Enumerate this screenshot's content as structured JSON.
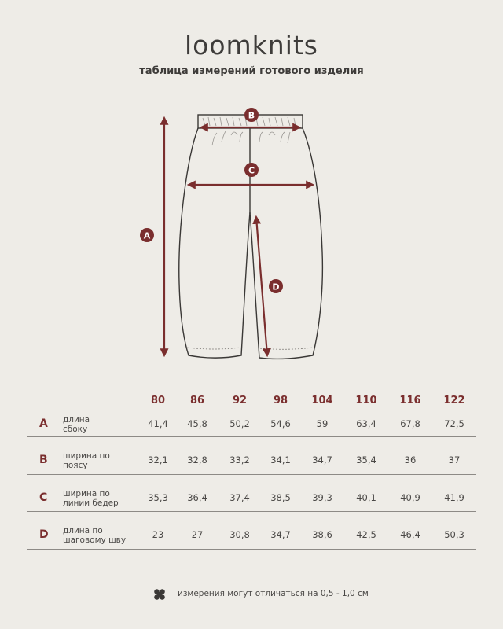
{
  "brand": "loomknits",
  "subtitle": "таблица измерений готового изделия",
  "colors": {
    "accent": "#7a2e2e",
    "background": "#eeece7",
    "line": "#3a3836"
  },
  "diagram": {
    "markers": [
      "A",
      "B",
      "C",
      "D"
    ]
  },
  "table": {
    "sizes": [
      "80",
      "86",
      "92",
      "98",
      "104",
      "110",
      "116",
      "122"
    ],
    "rows": [
      {
        "letter": "A",
        "label1": "длина",
        "label2": "сбоку",
        "values": [
          "41,4",
          "45,8",
          "50,2",
          "54,6",
          "59",
          "63,4",
          "67,8",
          "72,5"
        ]
      },
      {
        "letter": "B",
        "label1": "ширина по",
        "label2": "поясу",
        "values": [
          "32,1",
          "32,8",
          "33,2",
          "34,1",
          "34,7",
          "35,4",
          "36",
          "37"
        ]
      },
      {
        "letter": "C",
        "label1": "ширина по",
        "label2": "линии бедер",
        "values": [
          "35,3",
          "36,4",
          "37,4",
          "38,5",
          "39,3",
          "40,1",
          "40,9",
          "41,9"
        ]
      },
      {
        "letter": "D",
        "label1": "длина по",
        "label2": "шаговому шву",
        "values": [
          "23",
          "27",
          "30,8",
          "34,7",
          "38,6",
          "42,5",
          "46,4",
          "50,3"
        ]
      }
    ]
  },
  "footer": {
    "icon": "four-petal-flower-icon",
    "text": "измерения могут отличаться на 0,5 - 1,0 см"
  }
}
